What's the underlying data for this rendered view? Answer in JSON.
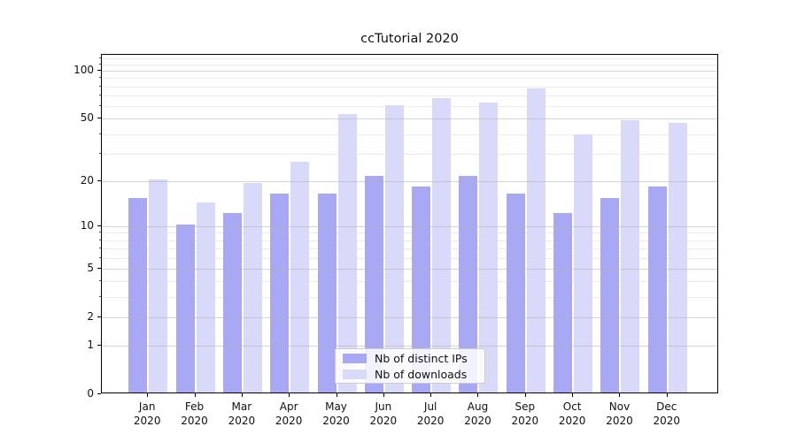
{
  "title": "ccTutorial 2020",
  "chart_data": {
    "type": "bar",
    "title": "ccTutorial 2020",
    "categories": [
      "Jan 2020",
      "Feb 2020",
      "Mar 2020",
      "Apr 2020",
      "May 2020",
      "Jun 2020",
      "Jul 2020",
      "Aug 2020",
      "Sep 2020",
      "Oct 2020",
      "Nov 2020",
      "Dec 2020"
    ],
    "series": [
      {
        "name": "Nb of distinct IPs",
        "color": "#a8a8f5",
        "values": [
          15,
          10,
          12,
          16,
          16,
          21,
          18,
          21,
          16,
          12,
          15,
          18
        ]
      },
      {
        "name": "Nb of downloads",
        "color": "#d9d9f9",
        "values": [
          20,
          14,
          19,
          26,
          52,
          59,
          66,
          62,
          76,
          39,
          48,
          46
        ]
      }
    ],
    "xlabel": "",
    "ylabel": "",
    "yscale": "log1p",
    "ylim": [
      0,
      126
    ],
    "y_major_ticks": [
      0,
      1,
      2,
      5,
      10,
      20,
      50,
      100
    ],
    "y_minor_ticks": [
      3,
      4,
      6,
      7,
      8,
      9,
      30,
      40,
      60,
      70,
      80,
      90,
      110,
      120
    ],
    "grid": true,
    "legend_position": "lower center"
  },
  "legend": {
    "items": [
      {
        "label": "Nb of distinct IPs"
      },
      {
        "label": "Nb of downloads"
      }
    ]
  }
}
